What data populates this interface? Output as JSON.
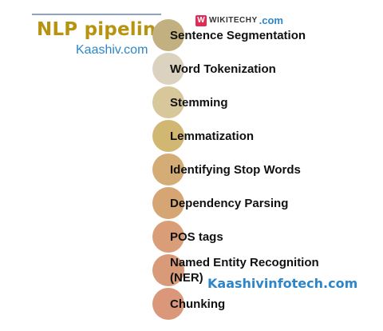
{
  "header": {
    "title": "NLP pipeline",
    "subsite": "Kaashiv.com",
    "brand": {
      "logo_letter": "W",
      "name": "WIKITECHY",
      "tld": ".com",
      "logo_color": "#e22a55"
    }
  },
  "steps": [
    {
      "label": "Sentence Segmentation",
      "color": "#c2b080"
    },
    {
      "label": "Word Tokenization",
      "color": "#dbd3c0"
    },
    {
      "label": "Stemming",
      "color": "#d8c79b"
    },
    {
      "label": "Lemmatization",
      "color": "#d2b773"
    },
    {
      "label": "Identifying Stop Words",
      "color": "#d4ac76"
    },
    {
      "label": "Dependency Parsing",
      "color": "#d6a574"
    },
    {
      "label": "POS tags",
      "color": "#d99e78"
    },
    {
      "label": "Named Entity Recognition (NER)",
      "line1": "Named Entity Recognition",
      "line2": "(NER)",
      "color": "#d89a78"
    },
    {
      "label": "Chunking",
      "color": "#db977a"
    }
  ],
  "watermark": "Kaashivinfotech.com"
}
